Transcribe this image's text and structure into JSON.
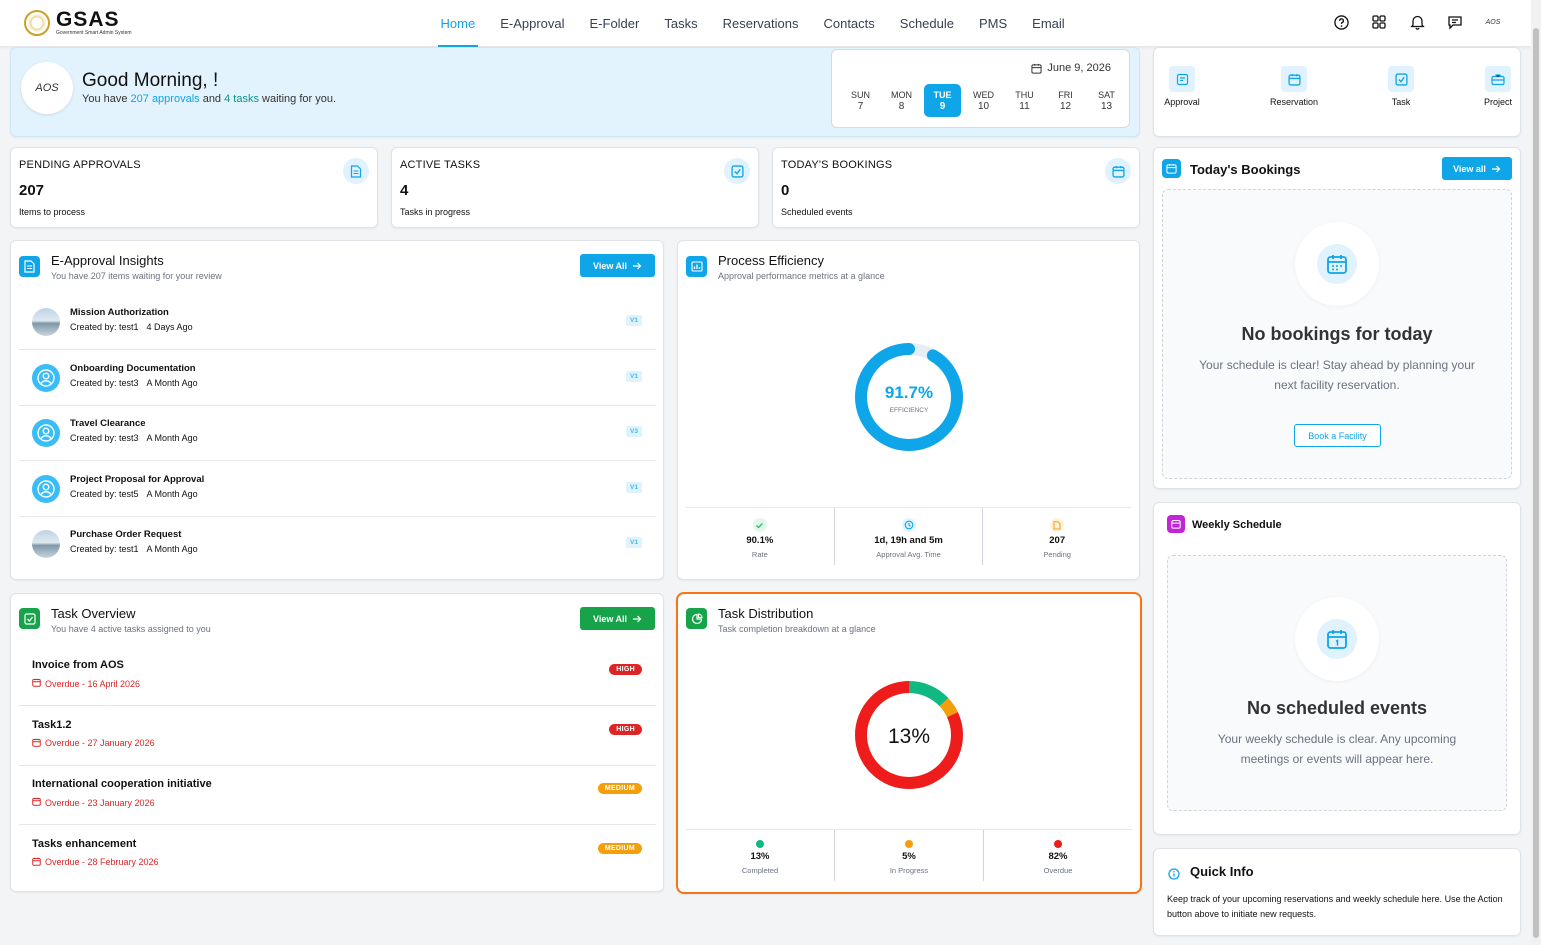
{
  "app": {
    "logo_title": "GSAS",
    "logo_subtitle": "Government Smart Admin System",
    "user_initials": "AOS"
  },
  "nav": {
    "items": [
      {
        "label": "Home",
        "active": true
      },
      {
        "label": "E-Approval"
      },
      {
        "label": "E-Folder"
      },
      {
        "label": "Tasks"
      },
      {
        "label": "Reservations"
      },
      {
        "label": "Contacts"
      },
      {
        "label": "Schedule"
      },
      {
        "label": "PMS"
      },
      {
        "label": "Email"
      }
    ],
    "icons": [
      "help-icon",
      "apps-grid-icon",
      "bell-icon",
      "message-icon"
    ]
  },
  "welcome": {
    "avatar_text": "AOS",
    "greeting": "Good Morning, !",
    "sub_prefix": "You have ",
    "approvals": "207 approvals",
    "sub_mid": " and ",
    "tasks": "4 tasks",
    "sub_suffix": " waiting for you.",
    "date": "June 9, 2026",
    "days": [
      {
        "name": "SUN",
        "num": "7"
      },
      {
        "name": "MON",
        "num": "8"
      },
      {
        "name": "TUE",
        "num": "9",
        "active": true
      },
      {
        "name": "WED",
        "num": "10"
      },
      {
        "name": "THU",
        "num": "11"
      },
      {
        "name": "FRI",
        "num": "12"
      },
      {
        "name": "SAT",
        "num": "13"
      }
    ]
  },
  "quick_actions": [
    {
      "label": "Approval",
      "icon": "approval-icon"
    },
    {
      "label": "Reservation",
      "icon": "calendar-icon"
    },
    {
      "label": "Task",
      "icon": "task-check-icon"
    },
    {
      "label": "Project",
      "icon": "briefcase-icon"
    }
  ],
  "stats": [
    {
      "label": "PENDING APPROVALS",
      "value": "207",
      "sub": "Items to process",
      "icon": "document-icon"
    },
    {
      "label": "ACTIVE TASKS",
      "value": "4",
      "sub": "Tasks in progress",
      "icon": "task-check-icon"
    },
    {
      "label": "TODAY'S BOOKINGS",
      "value": "0",
      "sub": "Scheduled events",
      "icon": "calendar-icon"
    }
  ],
  "approvals": {
    "title": "E-Approval Insights",
    "subtitle": "You have 207 items waiting for your review",
    "button": "View All",
    "items": [
      {
        "title": "Mission Authorization",
        "created": "Created by: test1",
        "ago": "4 Days Ago",
        "version": "V1",
        "avatar": "photo"
      },
      {
        "title": "Onboarding Documentation",
        "created": "Created by: test3",
        "ago": "A Month Ago",
        "version": "V1",
        "avatar": "user"
      },
      {
        "title": "Travel Clearance",
        "created": "Created by: test3",
        "ago": "A Month Ago",
        "version": "V3",
        "avatar": "user"
      },
      {
        "title": "Project Proposal for Approval",
        "created": "Created by: test5",
        "ago": "A Month Ago",
        "version": "V1",
        "avatar": "user"
      },
      {
        "title": "Purchase Order Request",
        "created": "Created by: test1",
        "ago": "A Month Ago",
        "version": "V1",
        "avatar": "photo"
      }
    ]
  },
  "efficiency": {
    "title": "Process Efficiency",
    "subtitle": "Approval performance metrics at a glance",
    "percent": 91.7,
    "percent_label": "91.7%",
    "center_label": "EFFICIENCY",
    "metrics": [
      {
        "value": "90.1%",
        "label": "Rate",
        "icon": "check-icon",
        "color": "#22c55e"
      },
      {
        "value": "1d, 19h and 5m",
        "label": "Approval Avg. Time",
        "icon": "clock-icon",
        "color": "#0ea5e9"
      },
      {
        "value": "207",
        "label": "Pending",
        "icon": "document-icon",
        "color": "#f59e0b"
      }
    ]
  },
  "bookings": {
    "title": "Today's Bookings",
    "button": "View all",
    "empty_title": "No bookings for today",
    "empty_sub": "Your schedule is clear! Stay ahead by planning your next facility reservation.",
    "action": "Book a Facility"
  },
  "tasks": {
    "title": "Task Overview",
    "subtitle": "You have 4 active tasks assigned to you",
    "button": "View All",
    "items": [
      {
        "title": "Invoice from AOS",
        "due": "Overdue - 16 April 2026",
        "priority": "HIGH"
      },
      {
        "title": "Task1.2",
        "due": "Overdue - 27 January 2026",
        "priority": "HIGH"
      },
      {
        "title": "International cooperation initiative",
        "due": "Overdue - 23 January 2026",
        "priority": "MEDIUM"
      },
      {
        "title": "Tasks enhancement",
        "due": "Overdue - 28 February 2026",
        "priority": "MEDIUM"
      }
    ]
  },
  "distribution": {
    "title": "Task Distribution",
    "subtitle": "Task completion breakdown at a glance",
    "center": "13%",
    "segments": [
      {
        "label": "Completed",
        "value": 13,
        "display": "13%",
        "color": "#10b981"
      },
      {
        "label": "In Progress",
        "value": 5,
        "display": "5%",
        "color": "#f59e0b"
      },
      {
        "label": "Overdue",
        "value": 82,
        "display": "82%",
        "color": "#ef1c1c"
      }
    ],
    "highlight_color": "#f97316"
  },
  "weekly": {
    "title": "Weekly Schedule",
    "empty_title": "No scheduled events",
    "empty_sub": "Your weekly schedule is clear. Any upcoming meetings or events will appear here."
  },
  "quick_info": {
    "title": "Quick Info",
    "text": "Keep track of your upcoming reservations and weekly schedule here. Use the Action button above to initiate new requests."
  }
}
